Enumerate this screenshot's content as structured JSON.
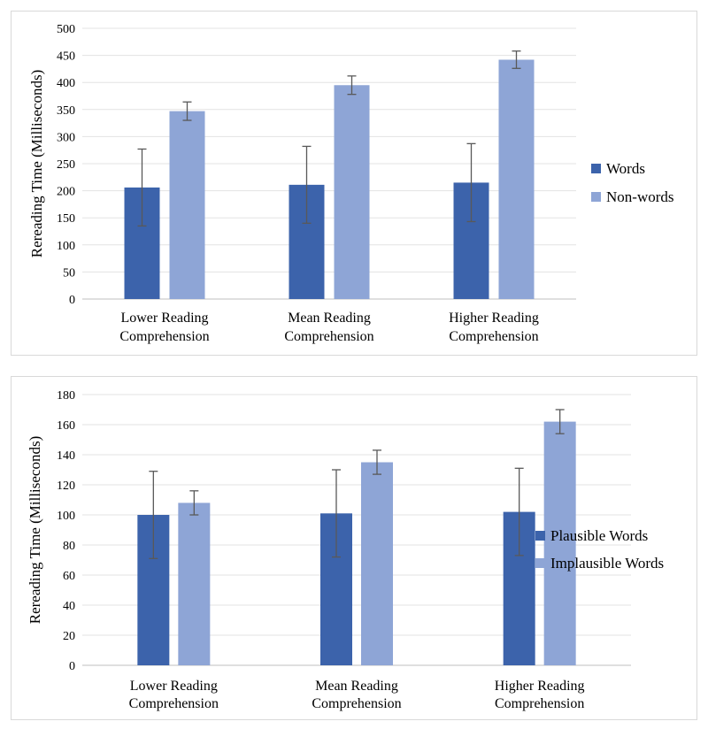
{
  "chart_data": [
    {
      "type": "bar",
      "categories": [
        [
          "Lower Reading",
          "Comprehension"
        ],
        [
          "Mean Reading",
          "Comprehension"
        ],
        [
          "Higher Reading",
          "Comprehension"
        ]
      ],
      "series": [
        {
          "name": "Words",
          "color": "#3c63ab",
          "values": [
            206,
            211,
            215
          ],
          "errors": [
            71,
            71,
            72
          ]
        },
        {
          "name": "Non-words",
          "color": "#8ea5d6",
          "values": [
            347,
            395,
            442
          ],
          "errors": [
            17,
            17,
            16
          ]
        }
      ],
      "ylabel": "Rereading Time (Milliseconds)",
      "xlabel": "",
      "ylim": [
        0,
        500
      ],
      "ytick_step": 50,
      "grid": true,
      "legend": "right"
    },
    {
      "type": "bar",
      "categories": [
        [
          "Lower Reading",
          "Comprehension"
        ],
        [
          "Mean Reading",
          "Comprehension"
        ],
        [
          "Higher Reading",
          "Comprehension"
        ]
      ],
      "series": [
        {
          "name": "Plausible Words",
          "color": "#3c63ab",
          "values": [
            100,
            101,
            102
          ],
          "errors": [
            29,
            29,
            29
          ]
        },
        {
          "name": "Implausible Words",
          "color": "#8ea5d6",
          "values": [
            108,
            135,
            162
          ],
          "errors": [
            8,
            8,
            8
          ]
        }
      ],
      "ylabel": "Rereading Time (Milliseconds)",
      "xlabel": "",
      "ylim": [
        0,
        180
      ],
      "ytick_step": 20,
      "grid": true,
      "legend": "right"
    }
  ]
}
